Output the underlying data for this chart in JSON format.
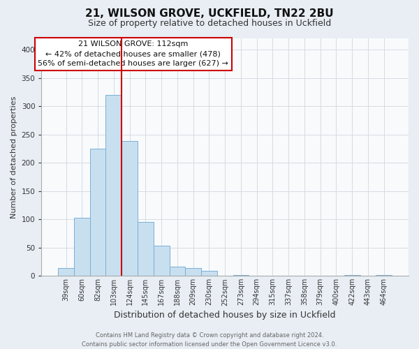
{
  "title": "21, WILSON GROVE, UCKFIELD, TN22 2BU",
  "subtitle": "Size of property relative to detached houses in Uckfield",
  "xlabel": "Distribution of detached houses by size in Uckfield",
  "ylabel": "Number of detached properties",
  "bar_labels": [
    "39sqm",
    "60sqm",
    "82sqm",
    "103sqm",
    "124sqm",
    "145sqm",
    "167sqm",
    "188sqm",
    "209sqm",
    "230sqm",
    "252sqm",
    "273sqm",
    "294sqm",
    "315sqm",
    "337sqm",
    "358sqm",
    "379sqm",
    "400sqm",
    "422sqm",
    "443sqm",
    "464sqm"
  ],
  "bar_values": [
    14,
    103,
    225,
    320,
    238,
    96,
    54,
    16,
    14,
    9,
    0,
    2,
    0,
    0,
    0,
    0,
    0,
    0,
    2,
    0,
    2
  ],
  "bar_color": "#c8dff0",
  "bar_edge_color": "#7ab0d4",
  "vline_color": "#cc0000",
  "vline_x": 3.5,
  "ylim": [
    0,
    420
  ],
  "yticks": [
    0,
    50,
    100,
    150,
    200,
    250,
    300,
    350,
    400
  ],
  "annotation_box_edge": "#cc0000",
  "annotation_box_facecolor": "#ffffff",
  "property_label": "21 WILSON GROVE: 112sqm",
  "annotation_line1": "← 42% of detached houses are smaller (478)",
  "annotation_line2": "56% of semi-detached houses are larger (627) →",
  "footer_line1": "Contains HM Land Registry data © Crown copyright and database right 2024.",
  "footer_line2": "Contains public sector information licensed under the Open Government Licence v3.0.",
  "bg_color": "#e8eef4",
  "plot_bg_color": "#f8fafc",
  "grid_color": "#d0d8e0",
  "title_fontsize": 11,
  "subtitle_fontsize": 9,
  "ylabel_fontsize": 8,
  "xlabel_fontsize": 9,
  "tick_fontsize": 7,
  "ytick_fontsize": 7.5,
  "annotation_fontsize": 8,
  "footer_fontsize": 6
}
